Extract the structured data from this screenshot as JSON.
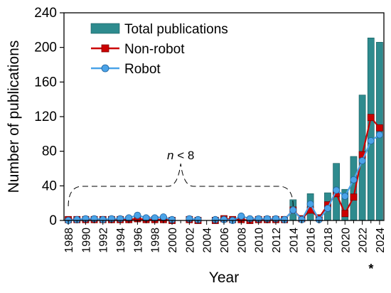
{
  "chart_data": {
    "type": "bar",
    "xlabel": "Year",
    "ylabel": "Number of publications",
    "ylim": [
      0,
      240
    ],
    "yticks": [
      "0",
      "40",
      "80",
      "120",
      "160",
      "200",
      "240"
    ],
    "xticks": [
      "1988",
      "1990",
      "1992",
      "1994",
      "1996",
      "1998",
      "2000",
      "2002",
      "2004",
      "2006",
      "2008",
      "2010",
      "2012",
      "2014",
      "2016",
      "2018",
      "2020",
      "2022",
      "2024"
    ],
    "grid": false,
    "legend_position": "top-left",
    "annotation": {
      "italic": "n",
      "rest": " < 8",
      "span": [
        1988,
        2014
      ]
    },
    "footnote": "*",
    "years": [
      1988,
      1989,
      1990,
      1991,
      1992,
      1993,
      1994,
      1995,
      1996,
      1997,
      1998,
      1999,
      2000,
      2001,
      2002,
      2003,
      2004,
      2005,
      2006,
      2007,
      2008,
      2009,
      2010,
      2011,
      2012,
      2013,
      2014,
      2015,
      2016,
      2017,
      2018,
      2019,
      2020,
      2021,
      2022,
      2023,
      2024
    ],
    "series": [
      {
        "name": "Total publications",
        "kind": "bar",
        "color": "#2e8b8e",
        "values": [
          1,
          1,
          2,
          2,
          1,
          3,
          2,
          3,
          6,
          3,
          3,
          4,
          1,
          0,
          2,
          1,
          0,
          1,
          3,
          1,
          5,
          2,
          3,
          3,
          3,
          2,
          24,
          3,
          31,
          4,
          32,
          66,
          36,
          74,
          145,
          211,
          206
        ]
      },
      {
        "name": "Non-robot",
        "kind": "line",
        "color": "#cc0000",
        "marker": "square",
        "values": [
          1,
          1,
          1,
          1,
          1,
          1,
          1,
          1,
          2,
          1,
          1,
          1,
          0,
          null,
          1,
          0,
          null,
          0,
          2,
          1,
          1,
          0,
          1,
          1,
          1,
          1,
          12,
          2,
          12,
          3,
          18,
          31,
          8,
          27,
          76,
          119,
          107
        ]
      },
      {
        "name": "Robot",
        "kind": "line",
        "color": "#4aa3e8",
        "marker": "circle",
        "values": [
          0,
          1,
          2,
          2,
          1,
          2,
          2,
          3,
          6,
          3,
          3,
          4,
          1,
          null,
          2,
          1,
          null,
          1,
          1,
          0,
          5,
          2,
          2,
          2,
          2,
          1,
          12,
          1,
          19,
          1,
          14,
          35,
          28,
          47,
          69,
          92,
          99
        ]
      }
    ]
  }
}
